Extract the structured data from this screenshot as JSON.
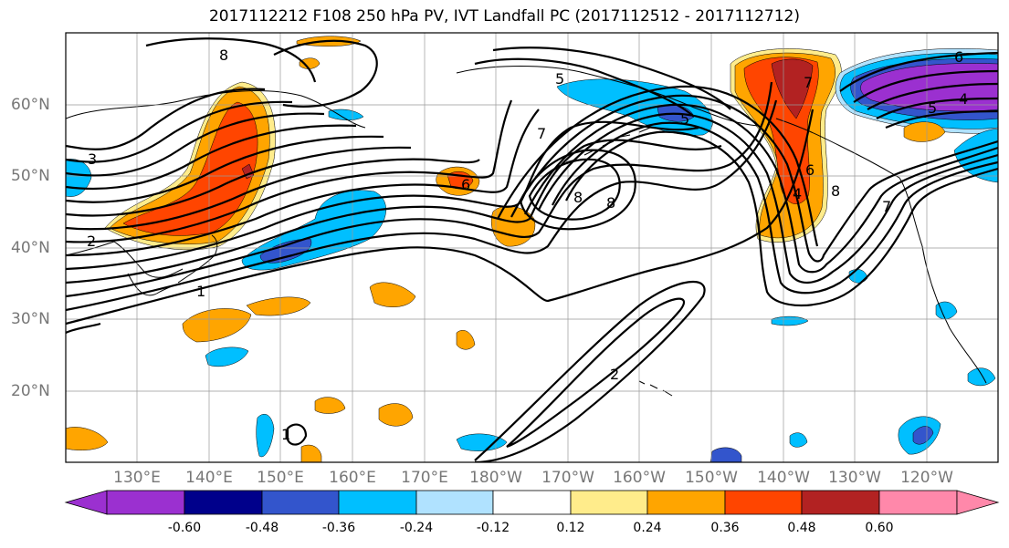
{
  "title": "2017112212 F108 250 hPa PV, IVT Landfall PC (2017112512 - 2017112712)",
  "lon_labels": [
    "130°E",
    "140°E",
    "150°E",
    "160°E",
    "170°E",
    "180°W",
    "170°W",
    "160°W",
    "150°W",
    "140°W",
    "130°W",
    "120°W"
  ],
  "lat_labels": [
    "60°N",
    "50°N",
    "40°N",
    "30°N",
    "20°N"
  ],
  "colorbar": {
    "ticks": [
      "-0.60",
      "-0.48",
      "-0.36",
      "-0.24",
      "-0.12",
      "0.12",
      "0.24",
      "0.36",
      "0.48",
      "0.60"
    ],
    "colors": [
      "#9b30d0",
      "#00008b",
      "#3355cc",
      "#00bfff",
      "#b0e2ff",
      "#ffffff",
      "#ffec8b",
      "#ffa500",
      "#ff4500",
      "#b22222",
      "#ff88aa"
    ]
  },
  "contour_labels": [
    "8",
    "3",
    "2",
    "1",
    "6",
    "7",
    "8",
    "5",
    "2",
    "1",
    "6",
    "7",
    "8",
    "4",
    "6",
    "5",
    "4",
    "7",
    "5",
    "8"
  ]
}
